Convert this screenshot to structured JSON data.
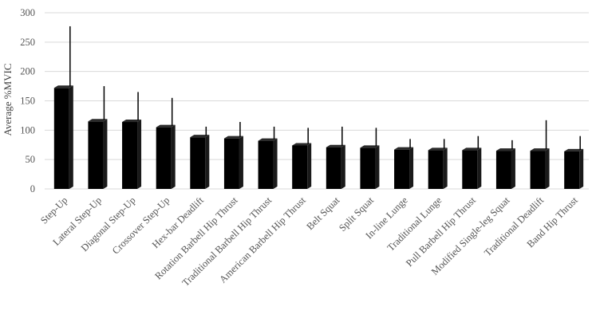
{
  "chart_data": {
    "type": "bar",
    "title": "",
    "xlabel": "",
    "ylabel": "Average %MVIC",
    "ylim": [
      0,
      300
    ],
    "yticks": [
      0,
      50,
      100,
      150,
      200,
      250,
      300
    ],
    "grid": true,
    "bar_color": "#000000",
    "categories": [
      "Step-Up",
      "Lateral Step-Up",
      "Diagonal Step-Up",
      "Crossover Step-Up",
      "Hex-bar Deadlift",
      "Rotation Barbell Hip Thrust",
      "Traditional Barbell Hip Thrust",
      "American Barbell Hip Thrust",
      "Belt Squat",
      "Split Squat",
      "In-line Lunge",
      "Traditional Lunge",
      "Pull Barbell Hip Thrust",
      "Modified Single-leg Squat",
      "Traditional Deadlift",
      "Band Hip Thrust"
    ],
    "values": [
      172,
      115,
      114,
      105,
      88,
      86,
      82,
      74,
      71,
      70,
      67,
      66,
      66,
      65,
      65,
      64
    ],
    "error_upper": [
      277,
      175,
      165,
      155,
      106,
      114,
      106,
      104,
      106,
      104,
      85,
      85,
      90,
      83,
      117,
      90
    ]
  }
}
